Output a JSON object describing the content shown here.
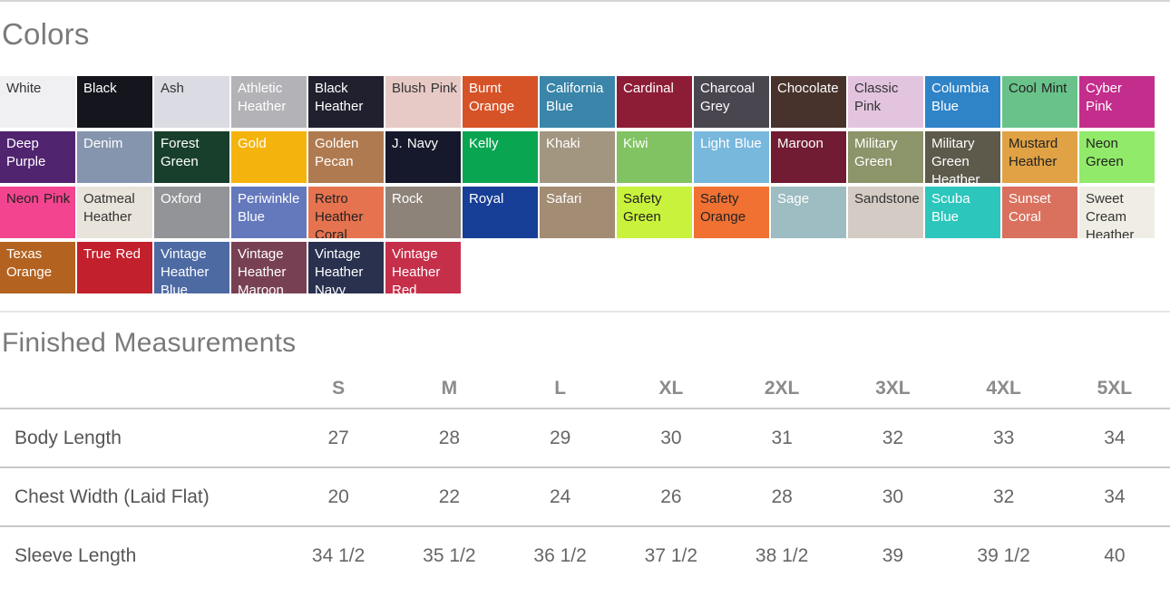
{
  "colors_section": {
    "heading": "Colors",
    "swatches": [
      {
        "label": "White",
        "bg": "#f0f0f2",
        "text": "#333333"
      },
      {
        "label": "Black",
        "bg": "#15151d",
        "text": "#ffffff"
      },
      {
        "label": "Ash",
        "bg": "#dbdbe3",
        "text": "#333333"
      },
      {
        "label": "Athletic Heather",
        "bg": "#b3b3b7",
        "text": "#ffffff"
      },
      {
        "label": "Black Heather",
        "bg": "#20202e",
        "text": "#ffffff"
      },
      {
        "label": "Blush Pink",
        "bg": "#e7cac6",
        "text": "#333333"
      },
      {
        "label": "Burnt Orange",
        "bg": "#d65327",
        "text": "#ffffff"
      },
      {
        "label": "California Blue",
        "bg": "#3a85a9",
        "text": "#ffffff"
      },
      {
        "label": "Cardinal",
        "bg": "#8d1d36",
        "text": "#ffffff"
      },
      {
        "label": "Charcoal Grey",
        "bg": "#494650",
        "text": "#ffffff"
      },
      {
        "label": "Chocolate",
        "bg": "#47332b",
        "text": "#ffffff"
      },
      {
        "label": "Classic Pink",
        "bg": "#e3c4df",
        "text": "#333333"
      },
      {
        "label": "Columbia Blue",
        "bg": "#2f83c7",
        "text": "#ffffff"
      },
      {
        "label": "Cool Mint",
        "bg": "#69c28a",
        "text": "#222222"
      },
      {
        "label": "Cyber Pink",
        "bg": "#c32d8b",
        "text": "#ffffff"
      },
      {
        "label": "Deep Purple",
        "bg": "#512470",
        "text": "#ffffff"
      },
      {
        "label": "Denim",
        "bg": "#8595ae",
        "text": "#ffffff"
      },
      {
        "label": "Forest Green",
        "bg": "#183f2b",
        "text": "#ffffff"
      },
      {
        "label": "Gold",
        "bg": "#f5b30d",
        "text": "#ffffff"
      },
      {
        "label": "Golden Pecan",
        "bg": "#b07a50",
        "text": "#ffffff"
      },
      {
        "label": "J. Navy",
        "bg": "#16192b",
        "text": "#ffffff"
      },
      {
        "label": "Kelly",
        "bg": "#0aa551",
        "text": "#ffffff"
      },
      {
        "label": "Khaki",
        "bg": "#a39681",
        "text": "#ffffff"
      },
      {
        "label": "Kiwi",
        "bg": "#81c363",
        "text": "#ffffff"
      },
      {
        "label": "Light Blue",
        "bg": "#78b8dd",
        "text": "#ffffff"
      },
      {
        "label": "Maroon",
        "bg": "#711c32",
        "text": "#ffffff"
      },
      {
        "label": "Military Green",
        "bg": "#8c9469",
        "text": "#ffffff"
      },
      {
        "label": "Military Green Heather",
        "bg": "#5d594b",
        "text": "#ffffff"
      },
      {
        "label": "Mustard Heather",
        "bg": "#e0a245",
        "text": "#222222"
      },
      {
        "label": "Neon Green",
        "bg": "#91ea69",
        "text": "#222222"
      },
      {
        "label": "Neon Pink",
        "bg": "#f3458f",
        "text": "#222222"
      },
      {
        "label": "Oatmeal Heather",
        "bg": "#e8e4db",
        "text": "#333333"
      },
      {
        "label": "Oxford",
        "bg": "#929497",
        "text": "#ffffff"
      },
      {
        "label": "Periwinkle Blue",
        "bg": "#6478bc",
        "text": "#ffffff"
      },
      {
        "label": "Retro Heather Coral",
        "bg": "#e6734f",
        "text": "#222222"
      },
      {
        "label": "Rock",
        "bg": "#8e8379",
        "text": "#ffffff"
      },
      {
        "label": "Royal",
        "bg": "#183f97",
        "text": "#ffffff"
      },
      {
        "label": "Safari",
        "bg": "#a28c73",
        "text": "#ffffff"
      },
      {
        "label": "Safety Green",
        "bg": "#c9f23c",
        "text": "#222222"
      },
      {
        "label": "Safety Orange",
        "bg": "#f07132",
        "text": "#222222"
      },
      {
        "label": "Sage",
        "bg": "#9dbdc2",
        "text": "#ffffff"
      },
      {
        "label": "Sandstone",
        "bg": "#d4ccc4",
        "text": "#333333"
      },
      {
        "label": "Scuba Blue",
        "bg": "#2cc6bc",
        "text": "#ffffff"
      },
      {
        "label": "Sunset Coral",
        "bg": "#d9715e",
        "text": "#ffffff"
      },
      {
        "label": "Sweet Cream Heather",
        "bg": "#f0ede4",
        "text": "#333333"
      },
      {
        "label": "Texas Orange",
        "bg": "#b46220",
        "text": "#ffffff"
      },
      {
        "label": "True Red",
        "bg": "#c2202c",
        "text": "#ffffff"
      },
      {
        "label": "Vintage Heather Blue",
        "bg": "#4d6aa3",
        "text": "#ffffff"
      },
      {
        "label": "Vintage Heather Maroon",
        "bg": "#784153",
        "text": "#ffffff"
      },
      {
        "label": "Vintage Heather Navy",
        "bg": "#29314f",
        "text": "#ffffff"
      },
      {
        "label": "Vintage Heather Red",
        "bg": "#c62f4a",
        "text": "#ffffff"
      }
    ]
  },
  "measurements_section": {
    "heading": "Finished Measurements",
    "size_headers": [
      "S",
      "M",
      "L",
      "XL",
      "2XL",
      "3XL",
      "4XL",
      "5XL"
    ],
    "rows": [
      {
        "label": "Body Length",
        "values": [
          "27",
          "28",
          "29",
          "30",
          "31",
          "32",
          "33",
          "34"
        ]
      },
      {
        "label": "Chest Width (Laid Flat)",
        "values": [
          "20",
          "22",
          "24",
          "26",
          "28",
          "30",
          "32",
          "34"
        ]
      },
      {
        "label": "Sleeve Length",
        "values": [
          "34 1/2",
          "35 1/2",
          "36 1/2",
          "37 1/2",
          "38 1/2",
          "39",
          "39 1/2",
          "40"
        ]
      }
    ]
  }
}
